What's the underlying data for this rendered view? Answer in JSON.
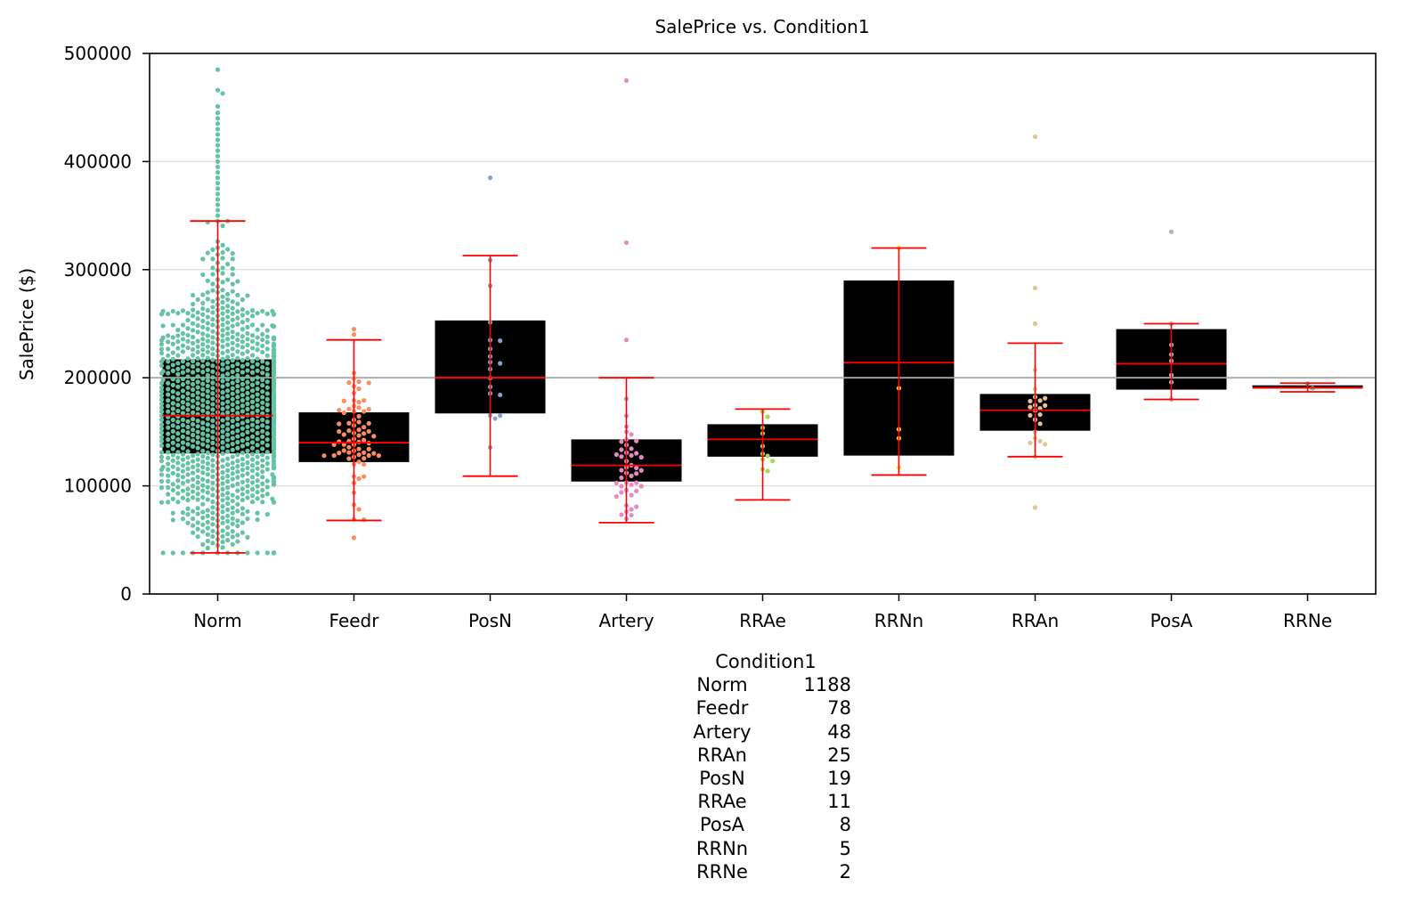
{
  "chart_data": {
    "type": "box",
    "title": "SalePrice vs. Condition1",
    "xlabel": "",
    "ylabel": "SalePrice ($)",
    "ylim": [
      0,
      500000
    ],
    "yticks": [
      0,
      100000,
      200000,
      300000,
      400000,
      500000
    ],
    "ytick_labels": [
      "0",
      "100000",
      "200000",
      "300000",
      "400000",
      "500000"
    ],
    "grid": "horizontal",
    "reference_line": 200000,
    "categories": [
      "Norm",
      "Feedr",
      "PosN",
      "Artery",
      "RRAe",
      "RRNn",
      "RRAn",
      "PosA",
      "RRNe"
    ],
    "colors": [
      "#66c2a5",
      "#fc8d62",
      "#8da0cb",
      "#e78ac3",
      "#a6d854",
      "#ffd92f",
      "#e5c494",
      "#b3b3b3",
      "#66c2a5"
    ],
    "box_color": "#000000",
    "median_color": "#ff0000",
    "boxes": [
      {
        "category": "Norm",
        "whisker_low": 38000,
        "q1": 130000,
        "median": 165000,
        "q3": 217000,
        "whisker_high": 345000
      },
      {
        "category": "Feedr",
        "whisker_low": 68000,
        "q1": 122000,
        "median": 140000,
        "q3": 168000,
        "whisker_high": 235000
      },
      {
        "category": "PosN",
        "whisker_low": 109000,
        "q1": 167000,
        "median": 200000,
        "q3": 253000,
        "whisker_high": 313000
      },
      {
        "category": "Artery",
        "whisker_low": 66000,
        "q1": 104000,
        "median": 119000,
        "q3": 143000,
        "whisker_high": 200000
      },
      {
        "category": "RRAe",
        "whisker_low": 87000,
        "q1": 127000,
        "median": 143000,
        "q3": 157000,
        "whisker_high": 171000
      },
      {
        "category": "RRNn",
        "whisker_low": 110000,
        "q1": 128000,
        "median": 214000,
        "q3": 290000,
        "whisker_high": 320000
      },
      {
        "category": "RRAn",
        "whisker_low": 127000,
        "q1": 151000,
        "median": 170000,
        "q3": 185000,
        "whisker_high": 232000
      },
      {
        "category": "PosA",
        "whisker_low": 180000,
        "q1": 189000,
        "median": 213000,
        "q3": 245000,
        "whisker_high": 250000
      },
      {
        "category": "RRNe",
        "whisker_low": 187000,
        "q1": 190000,
        "median": 190750,
        "q3": 193000,
        "whisker_high": 195000
      }
    ],
    "outliers": {
      "Norm": [
        350000,
        355000,
        360000,
        365000,
        370000,
        375000,
        380000,
        385000,
        390000,
        395000,
        400000,
        405000,
        410000,
        415000,
        420000,
        425000,
        430000,
        435000,
        440000,
        445000,
        451000,
        463000,
        466000,
        485000
      ],
      "Feedr": [
        52000,
        240000,
        245000
      ],
      "PosN": [
        385000
      ],
      "Artery": [
        235000,
        325000,
        475000
      ],
      "RRAe": [],
      "RRNn": [],
      "RRAn": [
        80000,
        250000,
        283000,
        423000
      ],
      "PosA": [
        335000
      ],
      "RRNe": []
    },
    "counts": {
      "title": "Condition1",
      "rows": [
        {
          "category": "Norm",
          "count": "1188"
        },
        {
          "category": "Feedr",
          "count": "78"
        },
        {
          "category": "Artery",
          "count": "48"
        },
        {
          "category": "RRAn",
          "count": "25"
        },
        {
          "category": "PosN",
          "count": "19"
        },
        {
          "category": "RRAe",
          "count": "11"
        },
        {
          "category": "PosA",
          "count": "8"
        },
        {
          "category": "RRNn",
          "count": "5"
        },
        {
          "category": "RRNe",
          "count": "2"
        }
      ]
    }
  }
}
